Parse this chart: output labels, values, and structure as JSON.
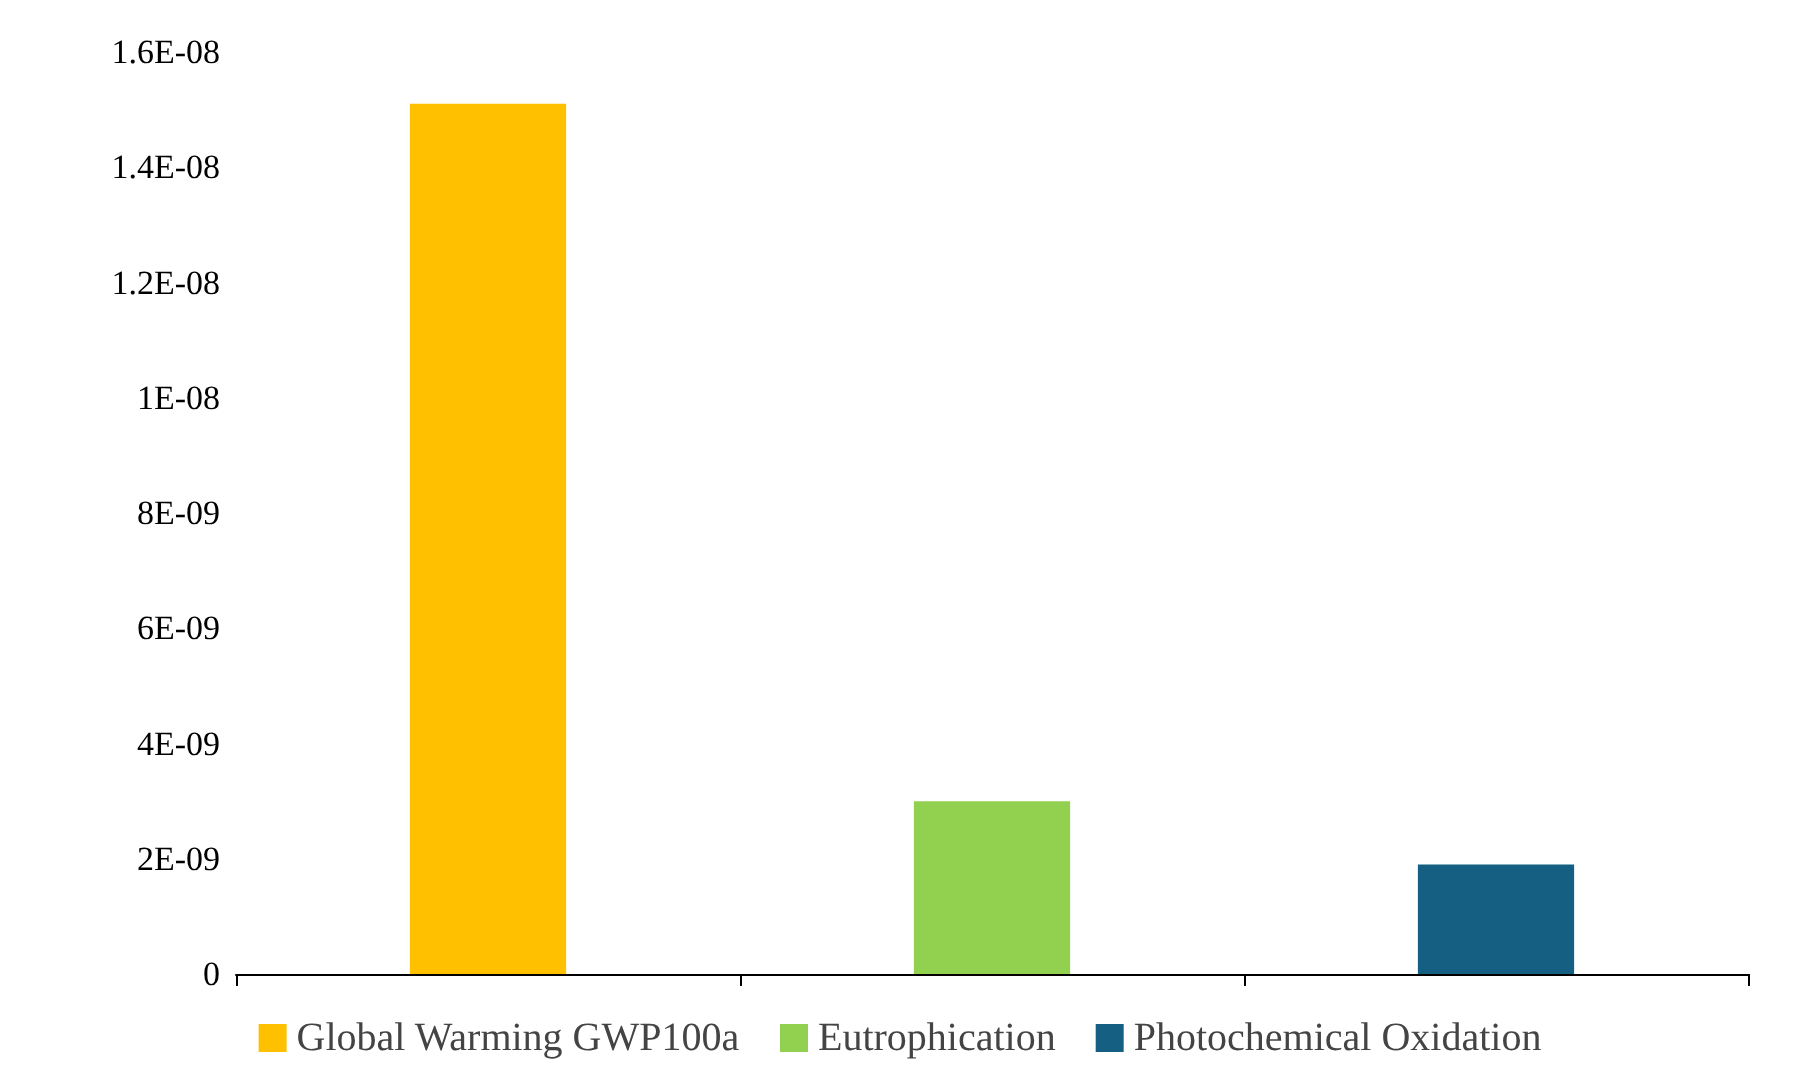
{
  "chart_data": {
    "type": "bar",
    "categories": [
      null,
      null,
      null
    ],
    "series": [
      {
        "name": "Global Warming GWP100a",
        "color": "#ffc000",
        "values": [
          1.51e-08,
          null,
          null
        ]
      },
      {
        "name": "Eutrophication",
        "color": "#92d050",
        "values": [
          null,
          3e-09,
          null
        ]
      },
      {
        "name": "Photochemical Oxidation",
        "color": "#156082",
        "values": [
          null,
          null,
          1.9e-09
        ]
      }
    ],
    "ylim": [
      0,
      1.6e-08
    ],
    "yticks": [
      0,
      {
        "value": 2e-09,
        "label": "2E-09"
      },
      {
        "value": 4e-09,
        "label": "4E-09"
      },
      {
        "value": 6e-09,
        "label": "6E-09"
      },
      {
        "value": 8e-09,
        "label": "8E-09"
      },
      {
        "value": 1e-08,
        "label": "1E-08"
      },
      {
        "value": 1.2e-08,
        "label": "1.2E-08"
      },
      {
        "value": 1.4e-08,
        "label": "1.4E-08"
      },
      {
        "value": 1.6e-08,
        "label": "1.6E-08"
      }
    ],
    "grid": false,
    "legend": "bottom"
  }
}
